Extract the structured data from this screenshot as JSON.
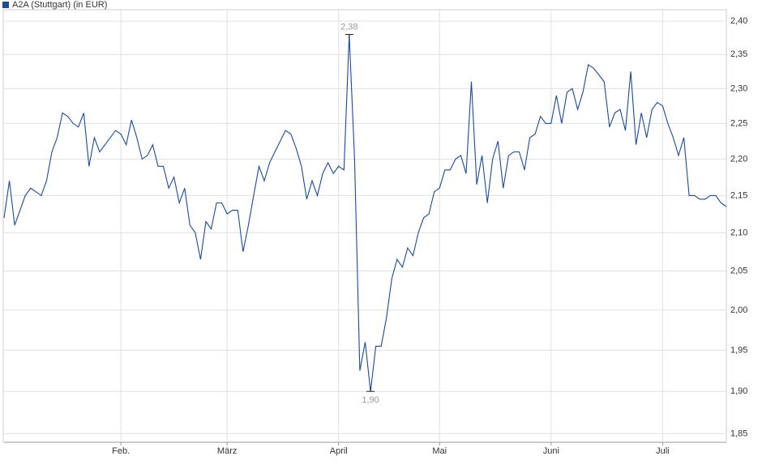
{
  "chart_data": {
    "type": "line",
    "categories": [
      null,
      null,
      null,
      null,
      null,
      null,
      null,
      null,
      null,
      null,
      null,
      null,
      null,
      null,
      null,
      null,
      null,
      null,
      null,
      null,
      null,
      null,
      "Feb.",
      null,
      null,
      null,
      null,
      null,
      null,
      null,
      null,
      null,
      null,
      null,
      null,
      null,
      null,
      null,
      null,
      null,
      null,
      null,
      "März",
      null,
      null,
      null,
      null,
      null,
      null,
      null,
      null,
      null,
      null,
      null,
      null,
      null,
      null,
      null,
      null,
      null,
      null,
      null,
      null,
      "April",
      null,
      null,
      null,
      null,
      null,
      null,
      null,
      null,
      null,
      null,
      null,
      null,
      null,
      null,
      null,
      null,
      null,
      null,
      "Mai",
      null,
      null,
      null,
      null,
      null,
      null,
      null,
      null,
      null,
      null,
      null,
      null,
      null,
      null,
      null,
      null,
      null,
      null,
      null,
      null,
      "Juni",
      null,
      null,
      null,
      null,
      null,
      null,
      null,
      null,
      null,
      null,
      null,
      null,
      null,
      null,
      null,
      null,
      null,
      null,
      null,
      null,
      "Juli",
      null,
      null,
      null,
      null,
      null,
      null,
      null,
      null,
      null,
      null,
      null,
      null
    ],
    "series": [
      {
        "name": "A2A (Stuttgart) (in EUR)",
        "color": "#1a4a9c",
        "values": [
          2.12,
          2.17,
          2.11,
          2.13,
          2.15,
          2.16,
          2.155,
          2.15,
          2.17,
          2.21,
          2.23,
          2.265,
          2.26,
          2.25,
          2.245,
          2.265,
          2.19,
          2.23,
          2.21,
          2.22,
          2.23,
          2.24,
          2.235,
          2.22,
          2.255,
          2.23,
          2.2,
          2.205,
          2.22,
          2.19,
          2.19,
          2.16,
          2.175,
          2.14,
          2.16,
          2.11,
          2.1,
          2.065,
          2.115,
          2.105,
          2.14,
          2.14,
          2.125,
          2.13,
          2.13,
          2.075,
          2.11,
          2.15,
          2.19,
          2.17,
          2.195,
          2.21,
          2.225,
          2.24,
          2.235,
          2.215,
          2.19,
          2.145,
          2.17,
          2.15,
          2.18,
          2.195,
          2.18,
          2.19,
          2.185,
          2.38,
          2.2,
          1.925,
          1.96,
          1.9,
          1.955,
          1.955,
          1.99,
          2.04,
          2.065,
          2.055,
          2.08,
          2.07,
          2.1,
          2.12,
          2.125,
          2.155,
          2.16,
          2.185,
          2.185,
          2.2,
          2.205,
          2.18,
          2.31,
          2.165,
          2.205,
          2.14,
          2.2,
          2.225,
          2.16,
          2.205,
          2.21,
          2.21,
          2.185,
          2.23,
          2.235,
          2.26,
          2.25,
          2.25,
          2.29,
          2.25,
          2.295,
          2.3,
          2.27,
          2.295,
          2.335,
          2.33,
          2.32,
          2.31,
          2.245,
          2.265,
          2.27,
          2.24,
          2.325,
          2.22,
          2.265,
          2.23,
          2.27,
          2.28,
          2.275,
          2.25,
          2.23,
          2.205,
          2.23,
          2.15,
          2.15,
          2.145,
          2.145,
          2.15,
          2.15,
          2.14,
          2.135
        ],
        "value_labels": [
          null,
          null,
          null,
          null,
          null,
          null,
          null,
          null,
          null,
          null,
          null,
          null,
          null,
          null,
          null,
          null,
          null,
          null,
          null,
          null,
          null,
          null,
          null,
          null,
          null,
          null,
          null,
          null,
          null,
          null,
          null,
          null,
          null,
          null,
          null,
          null,
          null,
          null,
          null,
          null,
          null,
          null,
          null,
          null,
          null,
          null,
          null,
          null,
          null,
          null,
          null,
          null,
          null,
          null,
          null,
          null,
          null,
          null,
          null,
          null,
          null,
          null,
          null,
          null,
          null,
          "2,38",
          null,
          null,
          null,
          "1,90",
          null,
          null,
          null,
          null,
          null,
          null,
          null,
          null,
          null,
          null,
          null,
          null,
          null,
          null,
          null,
          null,
          null,
          null,
          null,
          null,
          null,
          null,
          null,
          null,
          null,
          null,
          null,
          null,
          null,
          null,
          null,
          null,
          null,
          null,
          null,
          null,
          null,
          null,
          null,
          null,
          null,
          null,
          null,
          null,
          null,
          null,
          null,
          null,
          null,
          null,
          null,
          null,
          null,
          null,
          null,
          null,
          null,
          null,
          null,
          null,
          null,
          null,
          null,
          null,
          null,
          null,
          null
        ]
      }
    ],
    "log_scale": true,
    "ylim": [
      1.84,
      2.41
    ],
    "yticks": [
      {
        "value": 1.85,
        "label": "1,85"
      },
      {
        "value": 1.9,
        "label": "1,90"
      },
      {
        "value": 1.95,
        "label": "1,95"
      },
      {
        "value": 2.0,
        "label": "2,00"
      },
      {
        "value": 2.05,
        "label": "2,05"
      },
      {
        "value": 2.1,
        "label": "2,10"
      },
      {
        "value": 2.15,
        "label": "2,15"
      },
      {
        "value": 2.2,
        "label": "2,20"
      },
      {
        "value": 2.25,
        "label": "2,25"
      },
      {
        "value": 2.3,
        "label": "2,30"
      },
      {
        "value": 2.35,
        "label": "2,35"
      },
      {
        "value": 2.4,
        "label": "2,40"
      }
    ],
    "grid": true,
    "legend": "top-left"
  }
}
